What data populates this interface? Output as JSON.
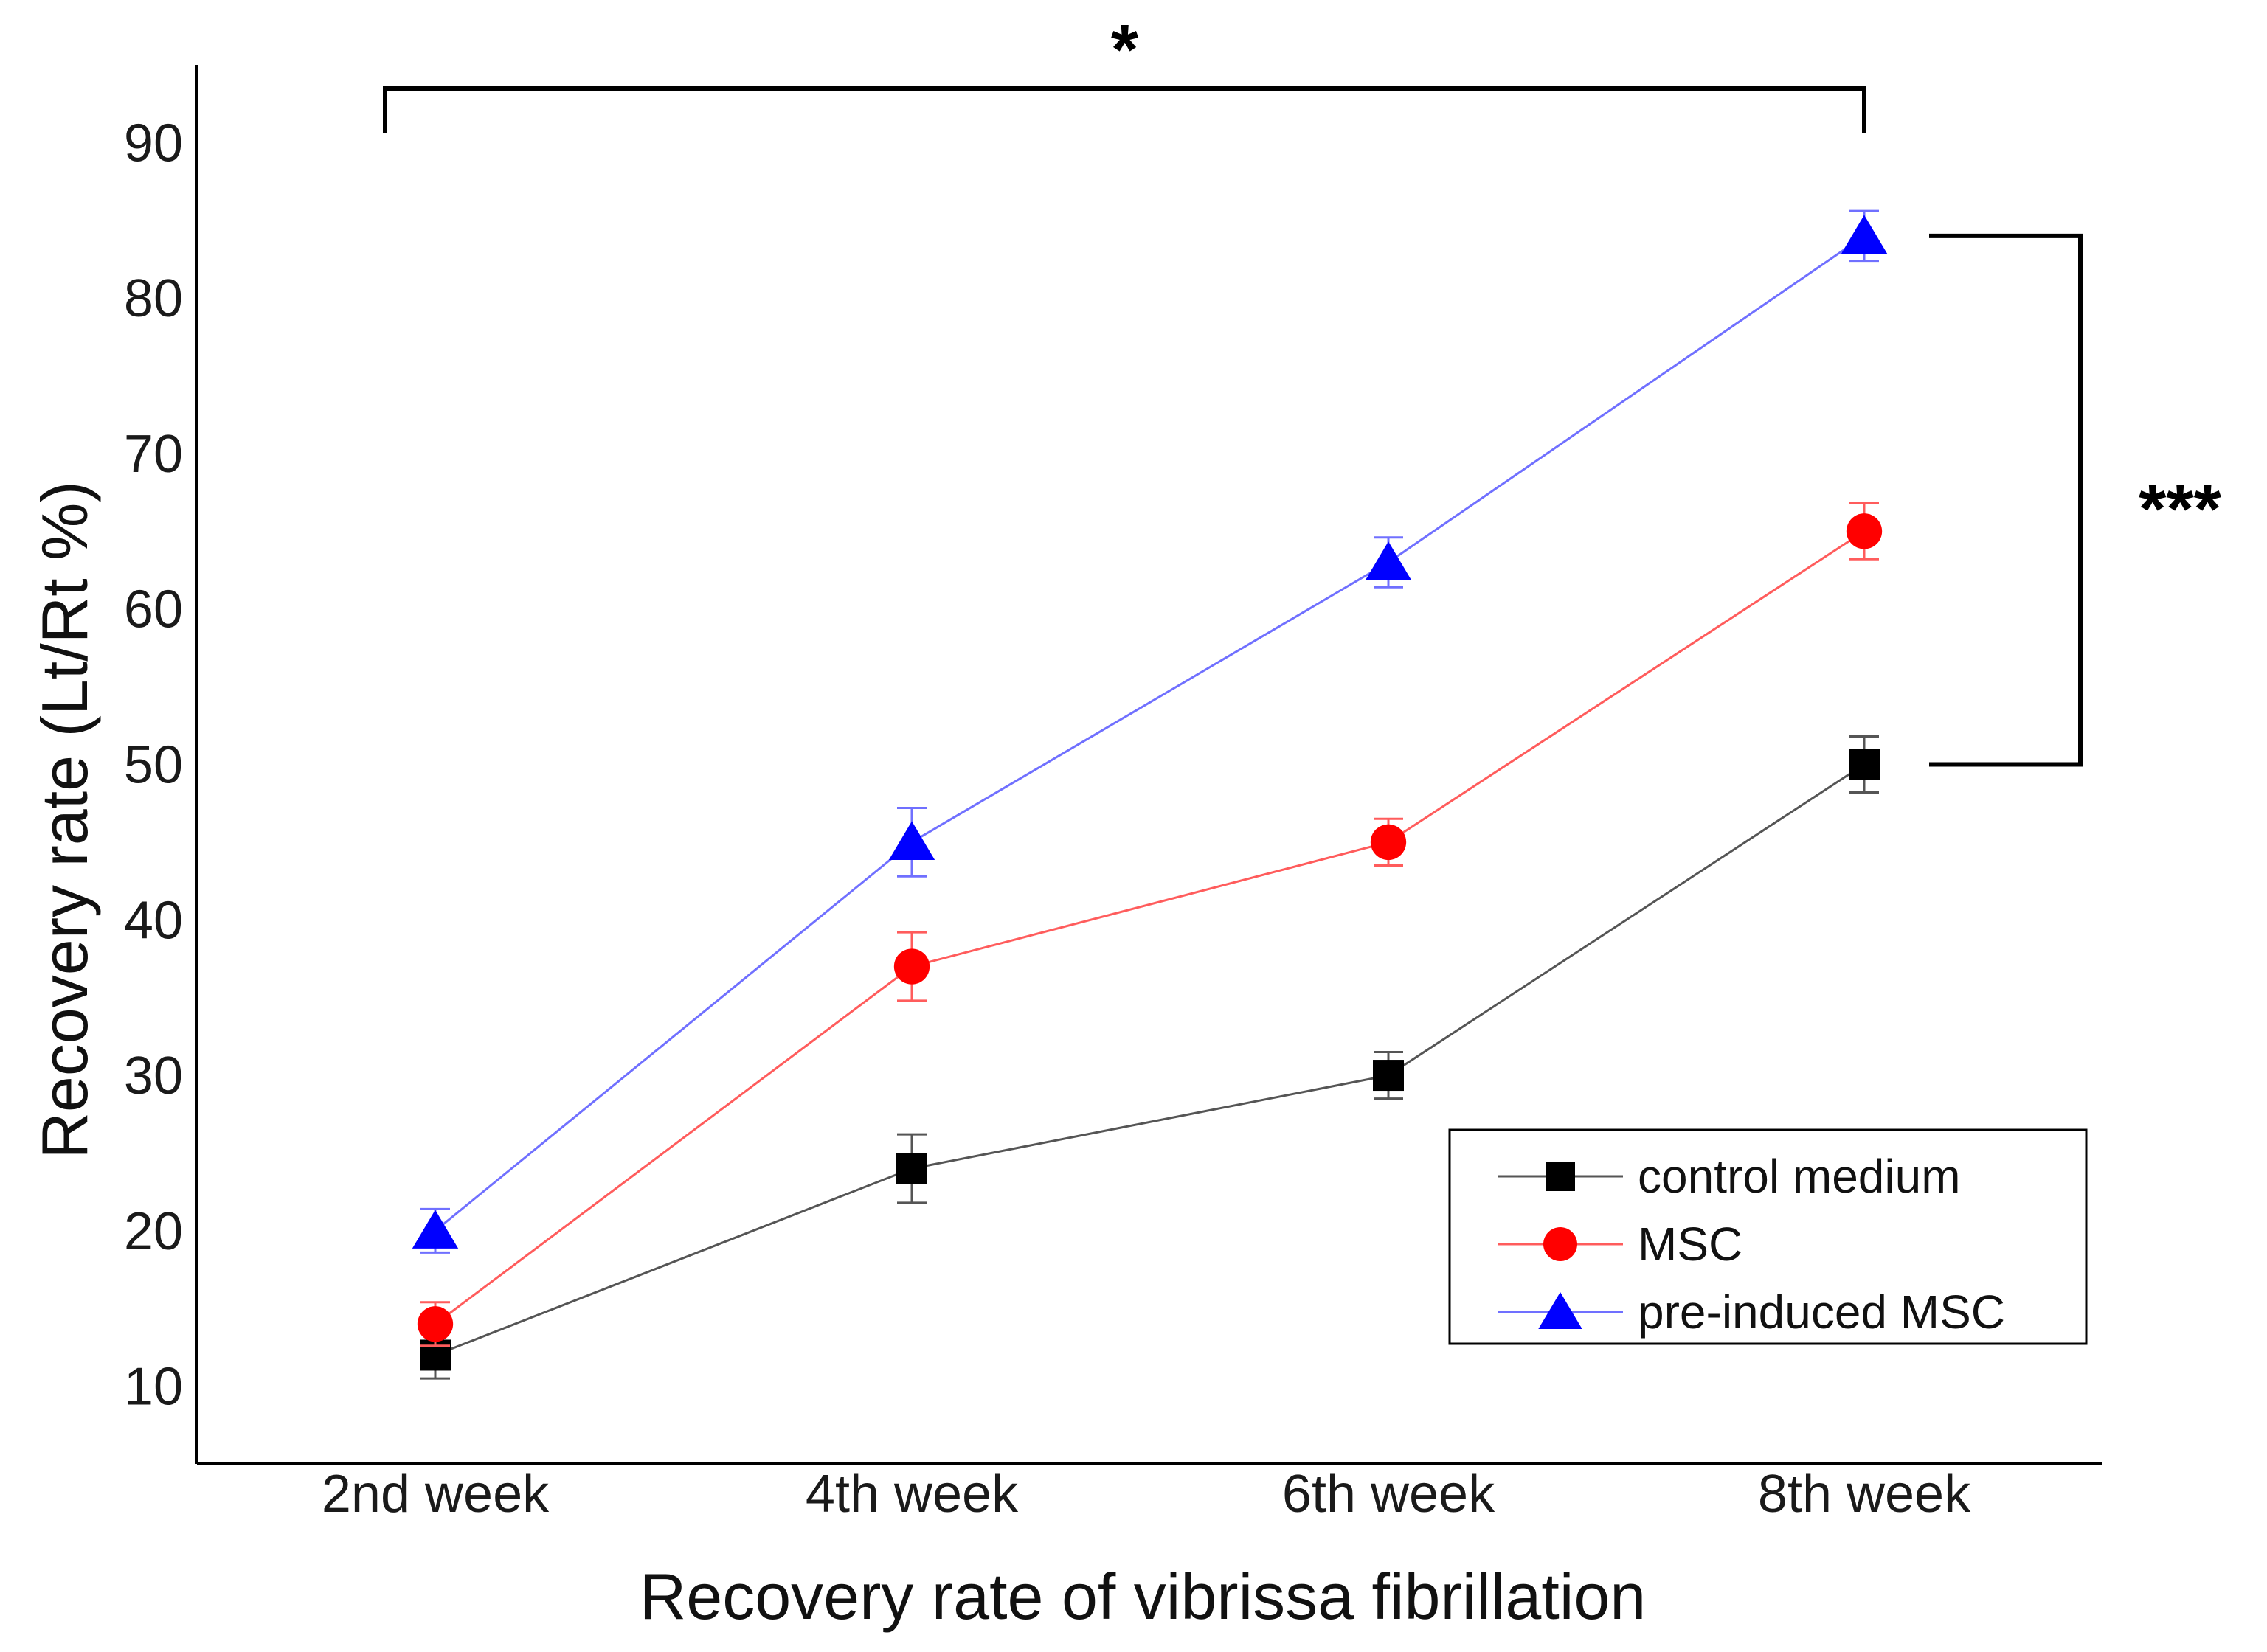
{
  "chart_data": {
    "type": "line",
    "title": "",
    "xlabel": "Recovery rate of vibrissa fibrillation",
    "ylabel": "Recovery rate (Lt/Rt %)",
    "categories": [
      "2nd week",
      "4th week",
      "6th week",
      "8th week"
    ],
    "ylim": [
      5,
      95
    ],
    "yticks": [
      10,
      20,
      30,
      40,
      50,
      60,
      70,
      80,
      90
    ],
    "grid": false,
    "legend_position": "bottom-right",
    "series": [
      {
        "name": "control medium",
        "color": "#000000",
        "line_color": "#555555",
        "marker": "square",
        "values": [
          12,
          24,
          30,
          50
        ],
        "errors": [
          1.5,
          2.2,
          1.5,
          1.8
        ]
      },
      {
        "name": "MSC",
        "color": "#ff0000",
        "line_color": "#ff5c5c",
        "marker": "circle",
        "values": [
          14,
          37,
          45,
          65
        ],
        "errors": [
          1.4,
          2.2,
          1.5,
          1.8
        ]
      },
      {
        "name": "pre-induced MSC",
        "color": "#0000ff",
        "line_color": "#7070ff",
        "marker": "triangle",
        "values": [
          20,
          45,
          63,
          84
        ],
        "errors": [
          1.4,
          2.2,
          1.6,
          1.6
        ]
      }
    ],
    "annotations": [
      {
        "type": "bracket-horizontal",
        "label": "*",
        "from": "2nd week",
        "to": "8th week",
        "y": 93.5
      },
      {
        "type": "bracket-vertical",
        "label": "***",
        "from_value": 50,
        "to_value": 84,
        "at": "8th week"
      }
    ]
  }
}
